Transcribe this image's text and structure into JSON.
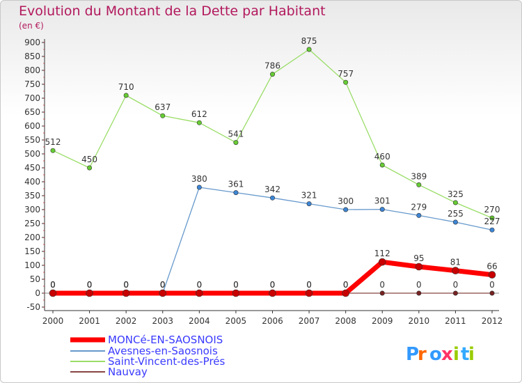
{
  "chart_data": {
    "type": "line",
    "title": "Evolution du Montant de la Dette par Habitant",
    "subtitle": "(en €)",
    "x": [
      "2000",
      "2001",
      "2002",
      "2003",
      "2004",
      "2005",
      "2006",
      "2007",
      "2008",
      "2009",
      "2010",
      "2011",
      "2012"
    ],
    "ylim": [
      -50,
      900
    ],
    "yticks": [
      -50,
      0,
      50,
      100,
      150,
      200,
      250,
      300,
      350,
      400,
      450,
      500,
      550,
      600,
      650,
      700,
      750,
      800,
      850,
      900
    ],
    "grid": false,
    "legend_position": "bottom-left",
    "series": [
      {
        "name": "MONCé-EN-SAOSNOIS",
        "color": "#ff0000",
        "marker": "#c80000",
        "width": 7,
        "values": [
          0,
          0,
          0,
          0,
          0,
          0,
          0,
          0,
          0,
          112,
          95,
          81,
          66
        ]
      },
      {
        "name": "Avesnes-en-Saosnois",
        "color": "#6699cc",
        "marker": "#3d86d6",
        "width": 1.3,
        "values": [
          0,
          0,
          0,
          0,
          380,
          361,
          342,
          321,
          300,
          301,
          279,
          255,
          227
        ]
      },
      {
        "name": "Saint-Vincent-des-Prés",
        "color": "#99dd66",
        "marker": "#66cc33",
        "width": 1.3,
        "values": [
          512,
          450,
          710,
          637,
          612,
          541,
          786,
          875,
          757,
          460,
          389,
          325,
          270
        ]
      },
      {
        "name": "Nauvay",
        "color": "#884444",
        "marker": "#772222",
        "width": 1.3,
        "values": [
          0,
          0,
          0,
          0,
          0,
          0,
          0,
          0,
          0,
          0,
          0,
          0,
          0
        ]
      }
    ]
  },
  "logo": {
    "letters": [
      "P",
      "r",
      "o",
      "x",
      "i",
      "t",
      "i"
    ],
    "colors": [
      "#3399ff",
      "#ff6600",
      "#3399ff",
      "#ff3366",
      "#99cc00",
      "#33aaff",
      "#99cc00"
    ]
  }
}
